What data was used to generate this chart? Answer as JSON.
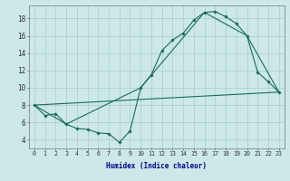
{
  "xlabel": "Humidex (Indice chaleur)",
  "bg_color": "#cce8e8",
  "line_color": "#1a6b5a",
  "grid_color": "#aacccc",
  "xlim": [
    -0.5,
    23.5
  ],
  "ylim": [
    3.0,
    19.5
  ],
  "yticks": [
    4,
    6,
    8,
    10,
    12,
    14,
    16,
    18
  ],
  "xticks": [
    0,
    1,
    2,
    3,
    4,
    5,
    6,
    7,
    8,
    9,
    10,
    11,
    12,
    13,
    14,
    15,
    16,
    17,
    18,
    19,
    20,
    21,
    22,
    23
  ],
  "line1_x": [
    0,
    1,
    2,
    3,
    4,
    5,
    6,
    7,
    8,
    9,
    10,
    11,
    12,
    13,
    14,
    15,
    16,
    17,
    18,
    19,
    20,
    21,
    22,
    23
  ],
  "line1_y": [
    8.0,
    6.8,
    7.0,
    5.8,
    5.3,
    5.2,
    4.8,
    4.7,
    3.7,
    5.0,
    10.0,
    11.5,
    14.3,
    15.5,
    16.3,
    17.8,
    18.7,
    18.8,
    18.2,
    17.4,
    16.0,
    11.8,
    10.7,
    9.5
  ],
  "line2_x": [
    0,
    3,
    10,
    16,
    20,
    23
  ],
  "line2_y": [
    8.0,
    5.8,
    10.0,
    18.7,
    16.0,
    9.5
  ],
  "line3_x": [
    0,
    23
  ],
  "line3_y": [
    8.0,
    9.5
  ],
  "xlabel_fontsize": 5.5,
  "xlabel_color": "#00008b",
  "tick_fontsize": 4.8,
  "ytick_fontsize": 5.5
}
